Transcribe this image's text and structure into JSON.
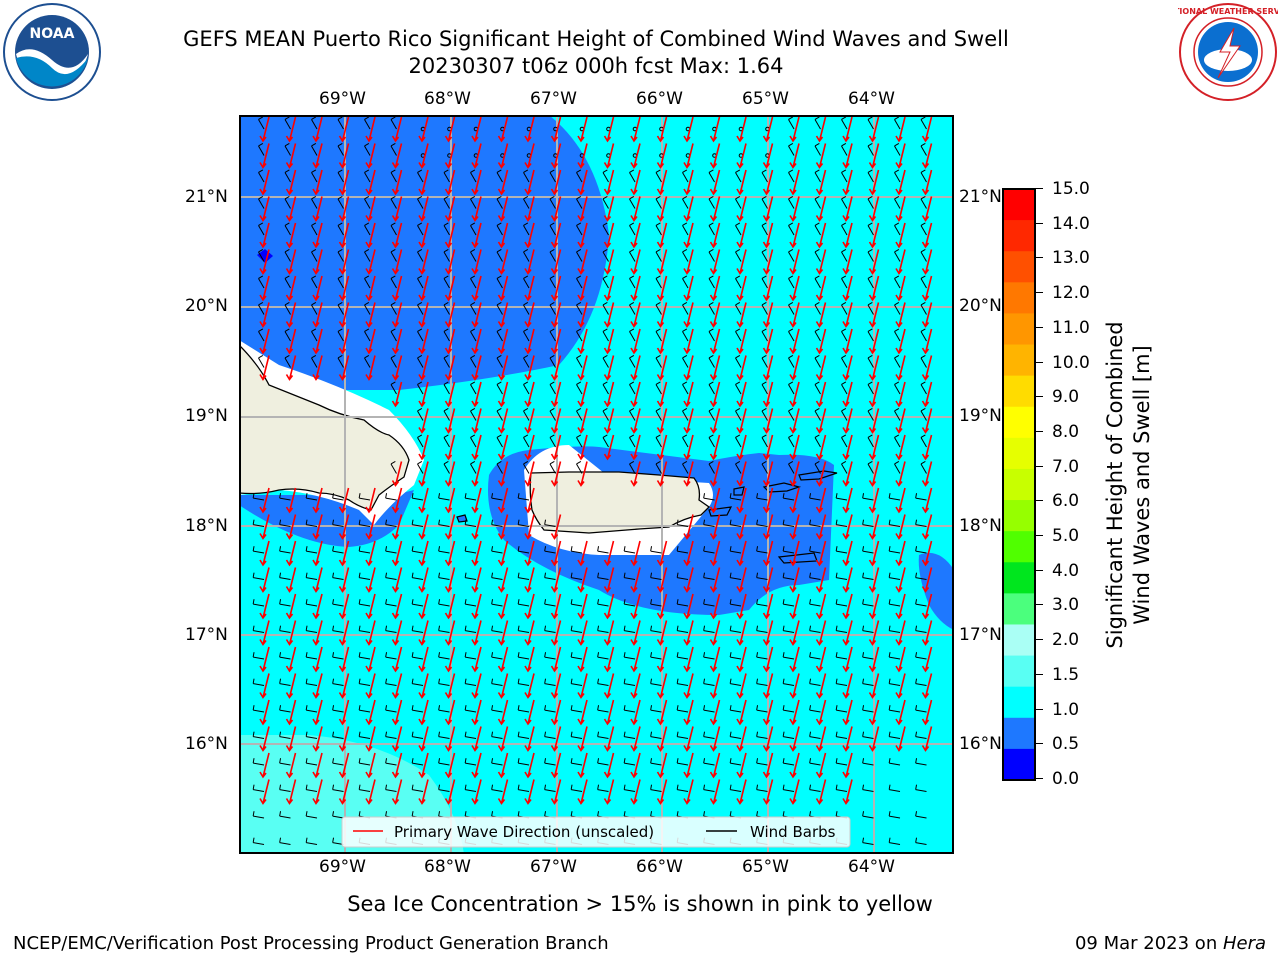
{
  "header": {
    "title_line1": "GEFS MEAN Puerto Rico Significant Height of Combined Wind Waves and Swell",
    "title_line2": "20230307 t06z 000h fcst   Max: 1.64"
  },
  "logos": {
    "noaa_text": "NOAA",
    "nws_text": "NATIONAL WEATHER SERVICE"
  },
  "map": {
    "lon_ticks": [
      "69°W",
      "68°W",
      "67°W",
      "66°W",
      "65°W",
      "64°W"
    ],
    "lat_ticks": [
      "21°N",
      "20°N",
      "19°N",
      "18°N",
      "17°N",
      "16°N"
    ],
    "legend": {
      "primary_wave": "Primary Wave Direction (unscaled)",
      "wind_barbs": "Wind Barbs",
      "primary_wave_color": "#ff0000",
      "wind_barbs_color": "#000000"
    },
    "field_colors": {
      "land": "#efefdf",
      "h_0_5_1_0": "#1e78ff",
      "h_1_0_1_5": "#00ffff",
      "h_1_5_2_0": "#59fff3"
    }
  },
  "colorbar": {
    "label_line1": "Significant Height of Combined",
    "label_line2": "Wind Waves and Swell [m]",
    "ticks": [
      "15.0",
      "14.0",
      "13.0",
      "12.0",
      "11.0",
      "10.0",
      "9.0",
      "8.0",
      "7.0",
      "6.0",
      "5.0",
      "4.0",
      "3.0",
      "2.0",
      "1.5",
      "1.0",
      "0.5",
      "0.0"
    ],
    "colors_top_to_bottom": [
      "#ff0000",
      "#ff2800",
      "#ff5000",
      "#ff7800",
      "#ff9600",
      "#ffb400",
      "#ffdc00",
      "#ffff00",
      "#e6ff00",
      "#c8ff00",
      "#96ff00",
      "#50ff00",
      "#00e61e",
      "#4bff7d",
      "#aafff5",
      "#59fff3",
      "#00ffff",
      "#1e78ff",
      "#0000ff"
    ]
  },
  "subtitle": "Sea Ice Concentration > 15% is shown in pink to yellow",
  "footer": {
    "left": "NCEP/EMC/Verification Post Processing Product Generation Branch",
    "right_date": "09 Mar 2023 on ",
    "right_host": "Hera"
  }
}
